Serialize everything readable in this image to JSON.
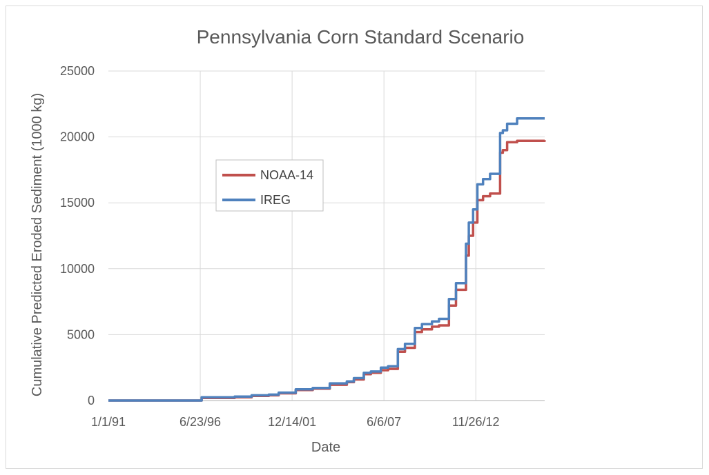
{
  "chart_data": {
    "type": "line",
    "title": "Pennsylvania Corn Standard Scenario",
    "xlabel": "Date",
    "ylabel": "Cumulative Predicted  Eroded Sediment (1000 kg)",
    "x_tick_labels": [
      "1/1/91",
      "6/23/96",
      "12/14/01",
      "6/6/07",
      "11/26/12"
    ],
    "x_range": [
      "1991-01-01",
      "2016-08-15"
    ],
    "y_ticks": [
      0,
      5000,
      10000,
      15000,
      20000,
      25000
    ],
    "y_tick_labels": [
      "0",
      "5000",
      "10000",
      "15000",
      "20000",
      "25000"
    ],
    "ylim": [
      0,
      25000
    ],
    "grid": true,
    "legend_position": "center-left",
    "series": [
      {
        "name": "NOAA-14",
        "color": "#c0504d",
        "x": [
          "1991-01-01",
          "1995-01-01",
          "1996-06-23",
          "1998-06-01",
          "1999-06-01",
          "2000-06-01",
          "2001-01-01",
          "2002-01-01",
          "2003-01-01",
          "2004-01-01",
          "2005-01-01",
          "2005-06-01",
          "2006-01-01",
          "2006-06-01",
          "2007-01-01",
          "2007-06-06",
          "2008-01-01",
          "2008-06-01",
          "2009-01-01",
          "2009-06-01",
          "2010-01-01",
          "2010-06-01",
          "2011-01-01",
          "2011-06-01",
          "2012-01-01",
          "2012-03-01",
          "2012-06-01",
          "2012-09-01",
          "2013-01-01",
          "2013-06-01",
          "2014-01-01",
          "2014-03-01",
          "2014-06-01",
          "2015-01-01",
          "2016-08-15"
        ],
        "values": [
          0,
          0,
          200,
          250,
          350,
          400,
          550,
          800,
          900,
          1200,
          1400,
          1600,
          2000,
          2100,
          2300,
          2400,
          3700,
          4000,
          5200,
          5400,
          5600,
          5700,
          7200,
          8400,
          11000,
          12500,
          13500,
          15200,
          15500,
          15700,
          18800,
          19000,
          19600,
          19700,
          19750
        ]
      },
      {
        "name": "IREG",
        "color": "#4f81bd",
        "x": [
          "1991-01-01",
          "1995-01-01",
          "1996-06-23",
          "1998-06-01",
          "1999-06-01",
          "2000-06-01",
          "2001-01-01",
          "2002-01-01",
          "2003-01-01",
          "2004-01-01",
          "2005-01-01",
          "2005-06-01",
          "2006-01-01",
          "2006-06-01",
          "2007-01-01",
          "2007-06-06",
          "2008-01-01",
          "2008-06-01",
          "2009-01-01",
          "2009-06-01",
          "2010-01-01",
          "2010-06-01",
          "2011-01-01",
          "2011-06-01",
          "2012-01-01",
          "2012-03-01",
          "2012-06-01",
          "2012-09-01",
          "2013-01-01",
          "2013-06-01",
          "2014-01-01",
          "2014-03-01",
          "2014-06-01",
          "2015-01-01",
          "2016-08-15"
        ],
        "values": [
          0,
          0,
          250,
          300,
          400,
          450,
          600,
          850,
          950,
          1300,
          1450,
          1700,
          2100,
          2200,
          2500,
          2600,
          3900,
          4300,
          5500,
          5800,
          6000,
          6200,
          7700,
          8900,
          11900,
          13500,
          14500,
          16400,
          16800,
          17200,
          20300,
          20500,
          21000,
          21400,
          21400
        ]
      }
    ]
  }
}
